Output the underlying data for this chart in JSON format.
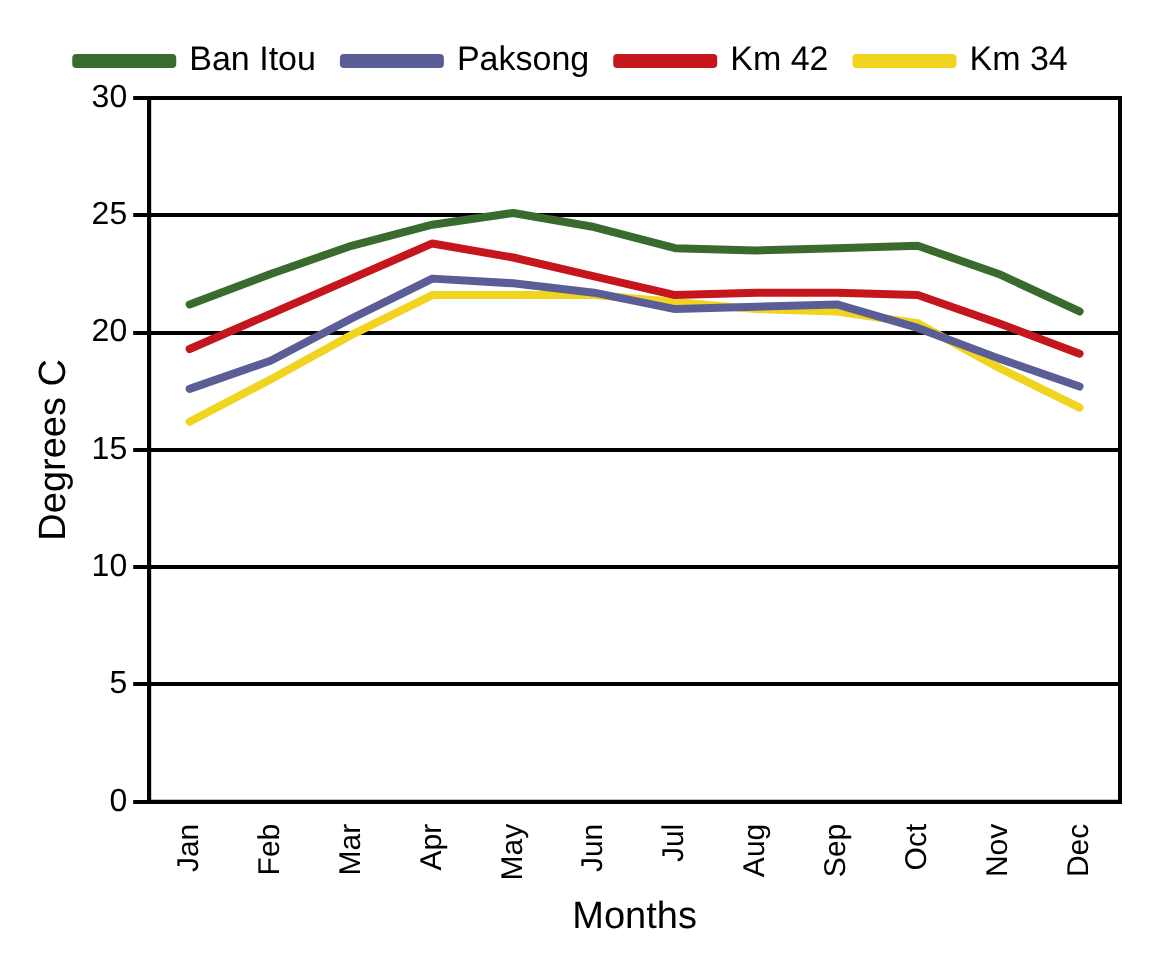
{
  "chart_data": {
    "type": "line",
    "xlabel": "Months",
    "ylabel": "Degrees C",
    "categories": [
      "Jan",
      "Feb",
      "Mar",
      "Apr",
      "May",
      "Jun",
      "Jul",
      "Aug",
      "Sep",
      "Oct",
      "Nov",
      "Dec"
    ],
    "series": [
      {
        "name": "Ban Itou",
        "color": "#3a6b2e",
        "values": [
          21.2,
          22.5,
          23.7,
          24.6,
          25.1,
          24.5,
          23.6,
          23.5,
          23.6,
          23.7,
          22.5,
          20.9
        ]
      },
      {
        "name": "Paksong",
        "color": "#5b5e96",
        "values": [
          17.6,
          18.8,
          20.6,
          22.3,
          22.1,
          21.7,
          21.0,
          21.1,
          21.2,
          20.2,
          18.9,
          17.7
        ]
      },
      {
        "name": "Km 42",
        "color": "#c4161c",
        "values": [
          19.3,
          20.8,
          22.3,
          23.8,
          23.2,
          22.4,
          21.6,
          21.7,
          21.7,
          21.6,
          20.4,
          19.1
        ]
      },
      {
        "name": "Km 34",
        "color": "#f0d420",
        "values": [
          16.2,
          18.0,
          19.9,
          21.6,
          21.6,
          21.6,
          21.3,
          21.0,
          20.9,
          20.4,
          18.5,
          16.8
        ]
      }
    ],
    "ylim": [
      0,
      30
    ],
    "yticks": [
      0,
      5,
      10,
      15,
      20,
      25,
      30
    ],
    "grid": "y",
    "legend": "top",
    "marker": "none",
    "line_style": "solid"
  }
}
